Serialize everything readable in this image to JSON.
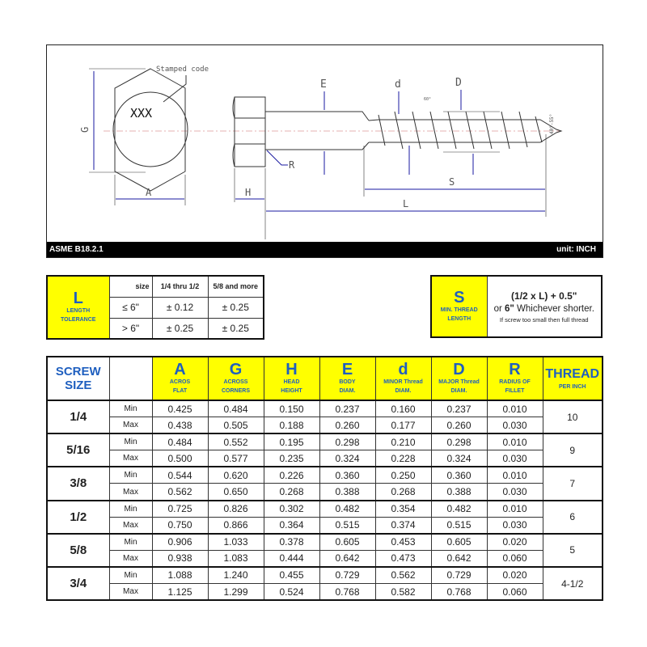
{
  "drawing": {
    "stamped_code_label": "Stamped code",
    "stamp_text": "XXX",
    "dims": {
      "G": "G",
      "A": "A",
      "H": "H",
      "R": "R",
      "E": "E",
      "d": "d",
      "D": "D",
      "S": "S",
      "L": "L"
    },
    "thread_angle": "60°",
    "point_angle": "40°-55°",
    "standard": "ASME B18.2.1",
    "unit": "unit: INCH"
  },
  "length_tolerance": {
    "letter": "L",
    "caption1": "LENGTH",
    "caption2": "TOLERANCE",
    "size_label": "size",
    "col1": "1/4 thru 1/2",
    "col2": "5/8 and more",
    "rows": [
      {
        "len": "≤ 6\"",
        "v1": "± 0.12",
        "v2": "± 0.25"
      },
      {
        "len": "> 6\"",
        "v1": "± 0.25",
        "v2": "± 0.25"
      }
    ]
  },
  "thread_length": {
    "letter": "S",
    "caption1": "MIN. THREAD",
    "caption2": "LENGTH",
    "line1": "(1/2 x L) + 0.5\"",
    "line2_bold": "6\"",
    "line2_pre": "or ",
    "line2_post": " Whichever shorter.",
    "line3": "If screw too small then full thread"
  },
  "table": {
    "screw_size_header": [
      "SCREW",
      "SIZE"
    ],
    "columns": [
      {
        "letter": "A",
        "c1": "ACROS",
        "c2": "FLAT"
      },
      {
        "letter": "G",
        "c1": "ACROSS",
        "c2": "CORNERS"
      },
      {
        "letter": "H",
        "c1": "HEAD",
        "c2": "HEIGHT"
      },
      {
        "letter": "E",
        "c1": "BODY",
        "c2": "DIAM."
      },
      {
        "letter": "d",
        "c1": "MINOR Thread",
        "c2": "DIAM."
      },
      {
        "letter": "D",
        "c1": "MAJOR Thread",
        "c2": "DIAM."
      },
      {
        "letter": "R",
        "c1": "RADIUS OF",
        "c2": "FILLET"
      }
    ],
    "thread_header": {
      "title": "THREAD",
      "sub": "PER INCH"
    },
    "min_label": "Min",
    "max_label": "Max",
    "rows": [
      {
        "size": "1/4",
        "min": [
          "0.425",
          "0.484",
          "0.150",
          "0.237",
          "0.160",
          "0.237",
          "0.010"
        ],
        "max": [
          "0.438",
          "0.505",
          "0.188",
          "0.260",
          "0.177",
          "0.260",
          "0.030"
        ],
        "tpi": "10"
      },
      {
        "size": "5/16",
        "min": [
          "0.484",
          "0.552",
          "0.195",
          "0.298",
          "0.210",
          "0.298",
          "0.010"
        ],
        "max": [
          "0.500",
          "0.577",
          "0.235",
          "0.324",
          "0.228",
          "0.324",
          "0.030"
        ],
        "tpi": "9"
      },
      {
        "size": "3/8",
        "min": [
          "0.544",
          "0.620",
          "0.226",
          "0.360",
          "0.250",
          "0.360",
          "0.010"
        ],
        "max": [
          "0.562",
          "0.650",
          "0.268",
          "0.388",
          "0.268",
          "0.388",
          "0.030"
        ],
        "tpi": "7"
      },
      {
        "size": "1/2",
        "min": [
          "0.725",
          "0.826",
          "0.302",
          "0.482",
          "0.354",
          "0.482",
          "0.010"
        ],
        "max": [
          "0.750",
          "0.866",
          "0.364",
          "0.515",
          "0.374",
          "0.515",
          "0.030"
        ],
        "tpi": "6"
      },
      {
        "size": "5/8",
        "min": [
          "0.906",
          "1.033",
          "0.378",
          "0.605",
          "0.453",
          "0.605",
          "0.020"
        ],
        "max": [
          "0.938",
          "1.083",
          "0.444",
          "0.642",
          "0.473",
          "0.642",
          "0.060"
        ],
        "tpi": "5"
      },
      {
        "size": "3/4",
        "min": [
          "1.088",
          "1.240",
          "0.455",
          "0.729",
          "0.562",
          "0.729",
          "0.020"
        ],
        "max": [
          "1.125",
          "1.299",
          "0.524",
          "0.768",
          "0.582",
          "0.768",
          "0.060"
        ],
        "tpi": "4-1/2"
      }
    ]
  },
  "colors": {
    "header_fill": "#ffff00",
    "header_text": "#1f5fbf",
    "dimension": "#1a1aa0"
  }
}
